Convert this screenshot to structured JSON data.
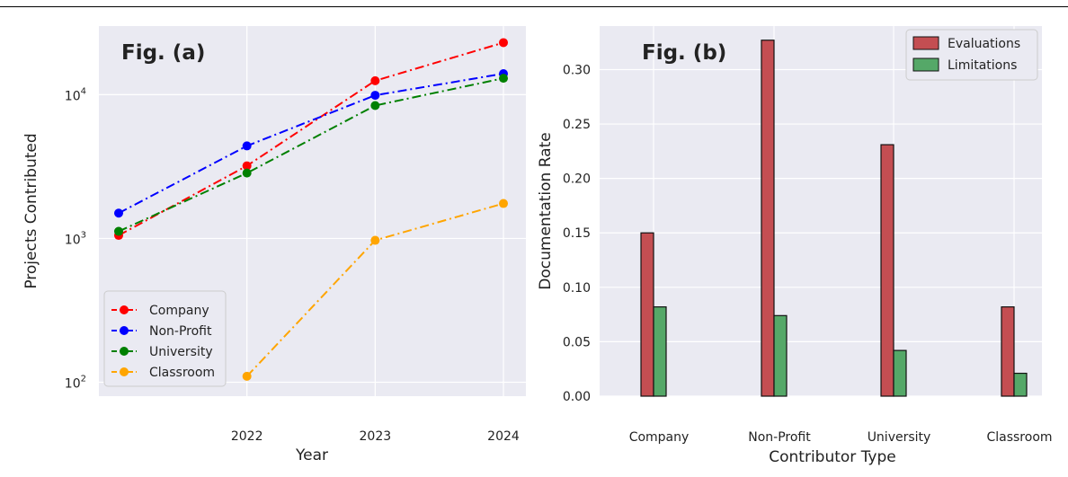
{
  "chart_data": [
    {
      "type": "line",
      "annotation": "Fig. (a)",
      "xlabel": "Year",
      "ylabel": "Projects Contributed",
      "yscale": "log",
      "ylim": [
        80,
        30000
      ],
      "x": [
        2021,
        2022,
        2023,
        2024
      ],
      "x_tick_labels": [
        "2022",
        "2023",
        "2024"
      ],
      "y_tick_labels": [
        {
          "base": "10",
          "exp": "2",
          "value": 100
        },
        {
          "base": "10",
          "exp": "3",
          "value": 1000
        },
        {
          "base": "10",
          "exp": "4",
          "value": 10000
        }
      ],
      "grid": true,
      "legend_position": "lower-left",
      "series": [
        {
          "name": "Company",
          "color": "#ff0000",
          "values": [
            1050,
            3200,
            12500,
            23000
          ]
        },
        {
          "name": "Non-Profit",
          "color": "#0000ff",
          "values": [
            1500,
            4400,
            9900,
            14000
          ]
        },
        {
          "name": "University",
          "color": "#008000",
          "values": [
            1120,
            2850,
            8400,
            13000
          ]
        },
        {
          "name": "Classroom",
          "color": "#ffa500",
          "values": [
            null,
            110,
            970,
            1750
          ]
        }
      ]
    },
    {
      "type": "bar",
      "annotation": "Fig. (b)",
      "xlabel": "Contributor Type",
      "ylabel": "Documentation Rate",
      "ylim": [
        0,
        0.34
      ],
      "y_ticks": [
        "0.00",
        "0.05",
        "0.10",
        "0.15",
        "0.20",
        "0.25",
        "0.30"
      ],
      "categories": [
        "Company",
        "Non-Profit",
        "University",
        "Classroom"
      ],
      "grid": true,
      "legend_position": "top-right",
      "series": [
        {
          "name": "Evaluations",
          "color": "#c44e52",
          "values": [
            0.15,
            0.327,
            0.231,
            0.082
          ]
        },
        {
          "name": "Limitations",
          "color": "#55a868",
          "values": [
            0.082,
            0.074,
            0.042,
            0.021
          ]
        }
      ]
    }
  ]
}
